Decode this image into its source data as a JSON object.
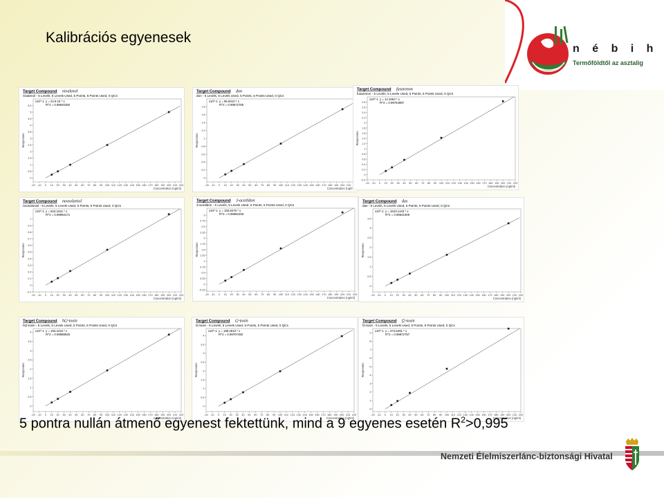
{
  "slide": {
    "title": "Kalibrációs egyenesek",
    "caption_main": "5 pontra nullán átmenő egyenest fektettünk, mind a 9 egyenes esetén R",
    "caption_sup": "2",
    "caption_end": ">0,995"
  },
  "logo": {
    "brand": "n é b i h",
    "slogan": "Termőföldtől az asztalig"
  },
  "footer": {
    "org_name": "Nemzeti Élelmiszerlánc-biztonsági Hivatal"
  },
  "colors": {
    "logo_red": "#d9232a",
    "logo_green": "#2f7d32",
    "text_dark": "#000000"
  },
  "chart_data": [
    {
      "type": "scatter",
      "header_label": "Target Compound",
      "compound": "nivalenol",
      "subtitle": "nivalenol - 5 Levels, 5 Levels Used, 5 Points, 5 Points Used, 0 QCs",
      "scale_label": "x10^-1",
      "equation": "y = 24.9.15 * x",
      "r2_text": "R^2 = 0.99540350",
      "ylabel": "Responses",
      "xlabel": "Concentration (ng/ml)",
      "xlim": [
        -20,
        220
      ],
      "ylim": [
        -0.3,
        6
      ],
      "x_ticks": [
        -20,
        -10,
        0,
        10,
        20,
        30,
        40,
        50,
        60,
        70,
        80,
        90,
        100,
        110,
        120,
        130,
        140,
        150,
        160,
        170,
        180,
        190,
        200,
        210,
        220
      ],
      "y_ticks": [
        0,
        0.5,
        1,
        1.5,
        2,
        2.5,
        3,
        3.5,
        4,
        4.5,
        5,
        5.5
      ],
      "x": [
        10,
        20,
        40,
        100,
        200
      ],
      "y": [
        0.25,
        0.5,
        1.0,
        2.5,
        5.0
      ]
    },
    {
      "type": "scatter",
      "header_label": "Target Compound",
      "compound": "don",
      "subtitle": "don - 5 Levels, 5 Levels Used, 5 Points, 5 Points Used, 0 QCs",
      "scale_label": "x10^-1",
      "equation": "y = 86.9410 * x",
      "r2_text": "R^2 = 0.99572765",
      "ylabel": "Responses",
      "xlabel": "Concentration (ng/ml)",
      "xlim": [
        -20,
        220
      ],
      "ylim": [
        -0.1,
        2.0
      ],
      "x_ticks": [
        -20,
        -10,
        0,
        10,
        20,
        30,
        40,
        50,
        60,
        70,
        80,
        90,
        100,
        110,
        120,
        130,
        140,
        150,
        160,
        170,
        180,
        190,
        200,
        210,
        220
      ],
      "y_ticks": [
        0,
        0.2,
        0.4,
        0.6,
        0.8,
        1,
        1.2,
        1.4,
        1.6,
        1.8
      ],
      "x": [
        10,
        20,
        40,
        100,
        200
      ],
      "y": [
        0.09,
        0.18,
        0.35,
        0.87,
        1.74
      ]
    },
    {
      "type": "scatter",
      "header_label": "Target Compound",
      "compound": "fusarenon",
      "subtitle": "fusarenon - 5 Levels, 5 Levels Used, 5 Points, 5 Points Used, 0 QCs",
      "scale_label": "x10^-1",
      "equation": "y = 14.1663 * x",
      "r2_text": "R^2 = 0.99764887",
      "ylabel": "Responses",
      "xlabel": "Concentration (ng/ml)",
      "xlim": [
        -20,
        220
      ],
      "ylim": [
        -0.2,
        3.0
      ],
      "x_ticks": [
        -20,
        -10,
        0,
        10,
        20,
        30,
        40,
        50,
        60,
        70,
        80,
        90,
        100,
        110,
        120,
        130,
        140,
        150,
        160,
        170,
        180,
        190,
        200,
        210,
        220
      ],
      "y_ticks": [
        -0.2,
        0,
        0.2,
        0.4,
        0.6,
        0.8,
        1,
        1.2,
        1.4,
        1.6,
        1.8,
        2,
        2.2,
        2.4,
        2.6,
        2.8
      ],
      "x": [
        10,
        20,
        40,
        100,
        200
      ],
      "y": [
        0.14,
        0.28,
        0.57,
        1.42,
        2.83
      ]
    },
    {
      "type": "scatter",
      "header_label": "Target Compound",
      "compound": "neosolaniol",
      "subtitle": "neosolaniol - 5 Levels, 5 Levels Used, 5 Points, 5 Points Used, 0 QCs",
      "scale_label": "x10^-1",
      "equation": "y = 534.4151 * x",
      "r2_text": "R^2 = 0.99993171",
      "ylabel": "Responses",
      "xlabel": "Concentration (ng/ml)",
      "xlim": [
        -20,
        220
      ],
      "ylim": [
        -0.1,
        1.15
      ],
      "x_ticks": [
        -20,
        -10,
        0,
        10,
        20,
        30,
        40,
        50,
        60,
        70,
        80,
        90,
        100,
        110,
        120,
        130,
        140,
        150,
        160,
        170,
        180,
        190,
        200,
        210,
        220
      ],
      "y_ticks": [
        -0.1,
        0,
        0.1,
        0.2,
        0.3,
        0.4,
        0.5,
        0.6,
        0.7,
        0.8,
        0.9,
        1
      ],
      "x": [
        10,
        20,
        40,
        100,
        200
      ],
      "y": [
        0.053,
        0.107,
        0.214,
        0.534,
        1.069
      ]
    },
    {
      "type": "scatter",
      "header_label": "Target Compound",
      "compound": "3-acetildon",
      "subtitle": "3-acetildon - 5 Levels, 5 Levels Used, 5 Points, 5 Points Used, 0 QCs",
      "scale_label": "x10^-1",
      "equation": "y = 155.8476 * x",
      "r2_text": "R^2 = 0.99992206",
      "ylabel": "Responses",
      "xlabel": "Concentration (ng/ml)",
      "xlim": [
        -20,
        220
      ],
      "ylim": [
        -0.3,
        3.3
      ],
      "x_ticks": [
        -20,
        -10,
        0,
        10,
        20,
        30,
        40,
        50,
        60,
        70,
        80,
        90,
        100,
        110,
        120,
        130,
        140,
        150,
        160,
        170,
        180,
        190,
        200,
        210,
        220
      ],
      "y_ticks": [
        -0.25,
        0,
        0.25,
        0.5,
        0.75,
        1,
        1.25,
        1.5,
        1.75,
        2,
        2.25,
        2.5,
        2.75,
        3
      ],
      "x": [
        10,
        20,
        40,
        100,
        200
      ],
      "y": [
        0.156,
        0.312,
        0.623,
        1.558,
        3.117
      ]
    },
    {
      "type": "scatter",
      "header_label": "Target Compound",
      "compound": "das",
      "subtitle": "das - 5 Levels, 5 Levels Used, 5 Points, 5 Points Used, 0 QCs",
      "scale_label": "x10^-1",
      "equation": "y = 1623.1443 * x",
      "r2_text": "R^2 = 0.99641909",
      "ylabel": "Responses",
      "xlabel": "Concentration (ng/ml)",
      "xlim": [
        -20,
        220
      ],
      "ylim": [
        -0.3,
        4.0
      ],
      "x_ticks": [
        -20,
        -10,
        0,
        10,
        20,
        30,
        40,
        50,
        60,
        70,
        80,
        90,
        100,
        110,
        120,
        130,
        140,
        150,
        160,
        170,
        180,
        190,
        200,
        210,
        220
      ],
      "y_ticks": [
        0,
        0.5,
        1,
        1.5,
        2,
        2.5,
        3,
        3.5
      ],
      "x": [
        10,
        20,
        40,
        100,
        200
      ],
      "y": [
        0.16,
        0.33,
        0.65,
        1.62,
        3.25
      ]
    },
    {
      "type": "scatter",
      "header_label": "Target Compound",
      "compound": "ht2-toxin",
      "subtitle": "ht2-toxin - 5 Levels, 5 Levels Used, 5 Points, 5 Points Used, 0 QCs",
      "scale_label": "x10^-1",
      "equation": "y = 193.4410 * x",
      "r2_text": "R^2 = 0.99988825",
      "ylabel": "Responses",
      "xlabel": "Concentration (ng/ml)",
      "xlim": [
        -20,
        220
      ],
      "ylim": [
        -0.3,
        4.2
      ],
      "x_ticks": [
        -20,
        -10,
        0,
        10,
        20,
        30,
        40,
        50,
        60,
        70,
        80,
        90,
        100,
        110,
        120,
        130,
        140,
        150,
        160,
        170,
        180,
        190,
        200,
        210,
        220
      ],
      "y_ticks": [
        0,
        0.5,
        1,
        1.5,
        2,
        2.5,
        3,
        3.5,
        4
      ],
      "x": [
        10,
        20,
        40,
        100,
        200
      ],
      "y": [
        0.19,
        0.39,
        0.77,
        1.93,
        3.87
      ]
    },
    {
      "type": "scatter",
      "header_label": "Target Compound",
      "compound": "t2-toxin",
      "subtitle": "t2-toxin - 5 Levels, 5 Levels Used, 5 Points, 5 Points Used, 0 QCs",
      "scale_label": "x10^-1",
      "equation": "y = 198.2910 * x",
      "r2_text": "R^2 = 0.99707450",
      "ylabel": "Responses",
      "xlabel": "Concentration (ng/ml)",
      "xlim": [
        -20,
        220
      ],
      "ylim": [
        -0.3,
        4.4
      ],
      "x_ticks": [
        -20,
        -10,
        0,
        10,
        20,
        30,
        40,
        50,
        60,
        70,
        80,
        90,
        100,
        110,
        120,
        130,
        140,
        150,
        160,
        170,
        180,
        190,
        200,
        210,
        220
      ],
      "y_ticks": [
        0,
        0.5,
        1,
        1.5,
        2,
        2.5,
        3,
        3.5,
        4
      ],
      "x": [
        10,
        20,
        40,
        100,
        200
      ],
      "y": [
        0.2,
        0.4,
        0.79,
        1.98,
        3.97
      ]
    },
    {
      "type": "scatter",
      "header_label": "Target Compound",
      "compound": "f2-toxin",
      "subtitle": "f2-toxin - 5 Levels, 5 Levels Used, 5 Points, 5 Points Used, 0 QCs",
      "scale_label": "x10^-1",
      "equation": "y = 474.5491 * x",
      "r2_text": "R^2 = 0.99872757",
      "ylabel": "Responses",
      "xlabel": "Concentration (ng/ml)",
      "xlim": [
        -20,
        220
      ],
      "ylim": [
        -0.3,
        9.5
      ],
      "x_ticks": [
        -20,
        -10,
        0,
        10,
        20,
        30,
        40,
        50,
        60,
        70,
        80,
        90,
        100,
        110,
        120,
        130,
        140,
        150,
        160,
        170,
        180,
        190,
        200,
        210,
        220
      ],
      "y_ticks": [
        0,
        1,
        2,
        3,
        4,
        5,
        6,
        7,
        8,
        9
      ],
      "x": [
        10,
        20,
        40,
        100,
        200
      ],
      "y": [
        0.47,
        0.95,
        1.9,
        4.75,
        9.49
      ]
    }
  ]
}
